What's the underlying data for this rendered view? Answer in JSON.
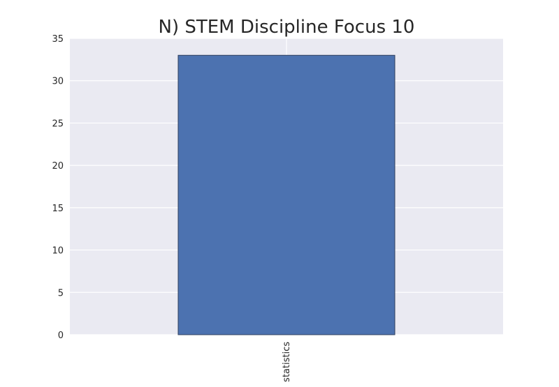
{
  "chart_data": {
    "type": "bar",
    "title": "N) STEM Discipline Focus 10",
    "categories": [
      "statistics"
    ],
    "values": [
      33
    ],
    "xlabel": "",
    "ylabel": "",
    "ylim": [
      0,
      35
    ],
    "yticks": [
      0,
      5,
      10,
      15,
      20,
      25,
      30,
      35
    ],
    "grid": true,
    "legend": "none",
    "colors": {
      "bar": "#4c72b0",
      "bar_edge": "#2f3f5c",
      "plot_background": "#eaeaf2",
      "grid": "#ffffff",
      "text": "#262626"
    }
  }
}
